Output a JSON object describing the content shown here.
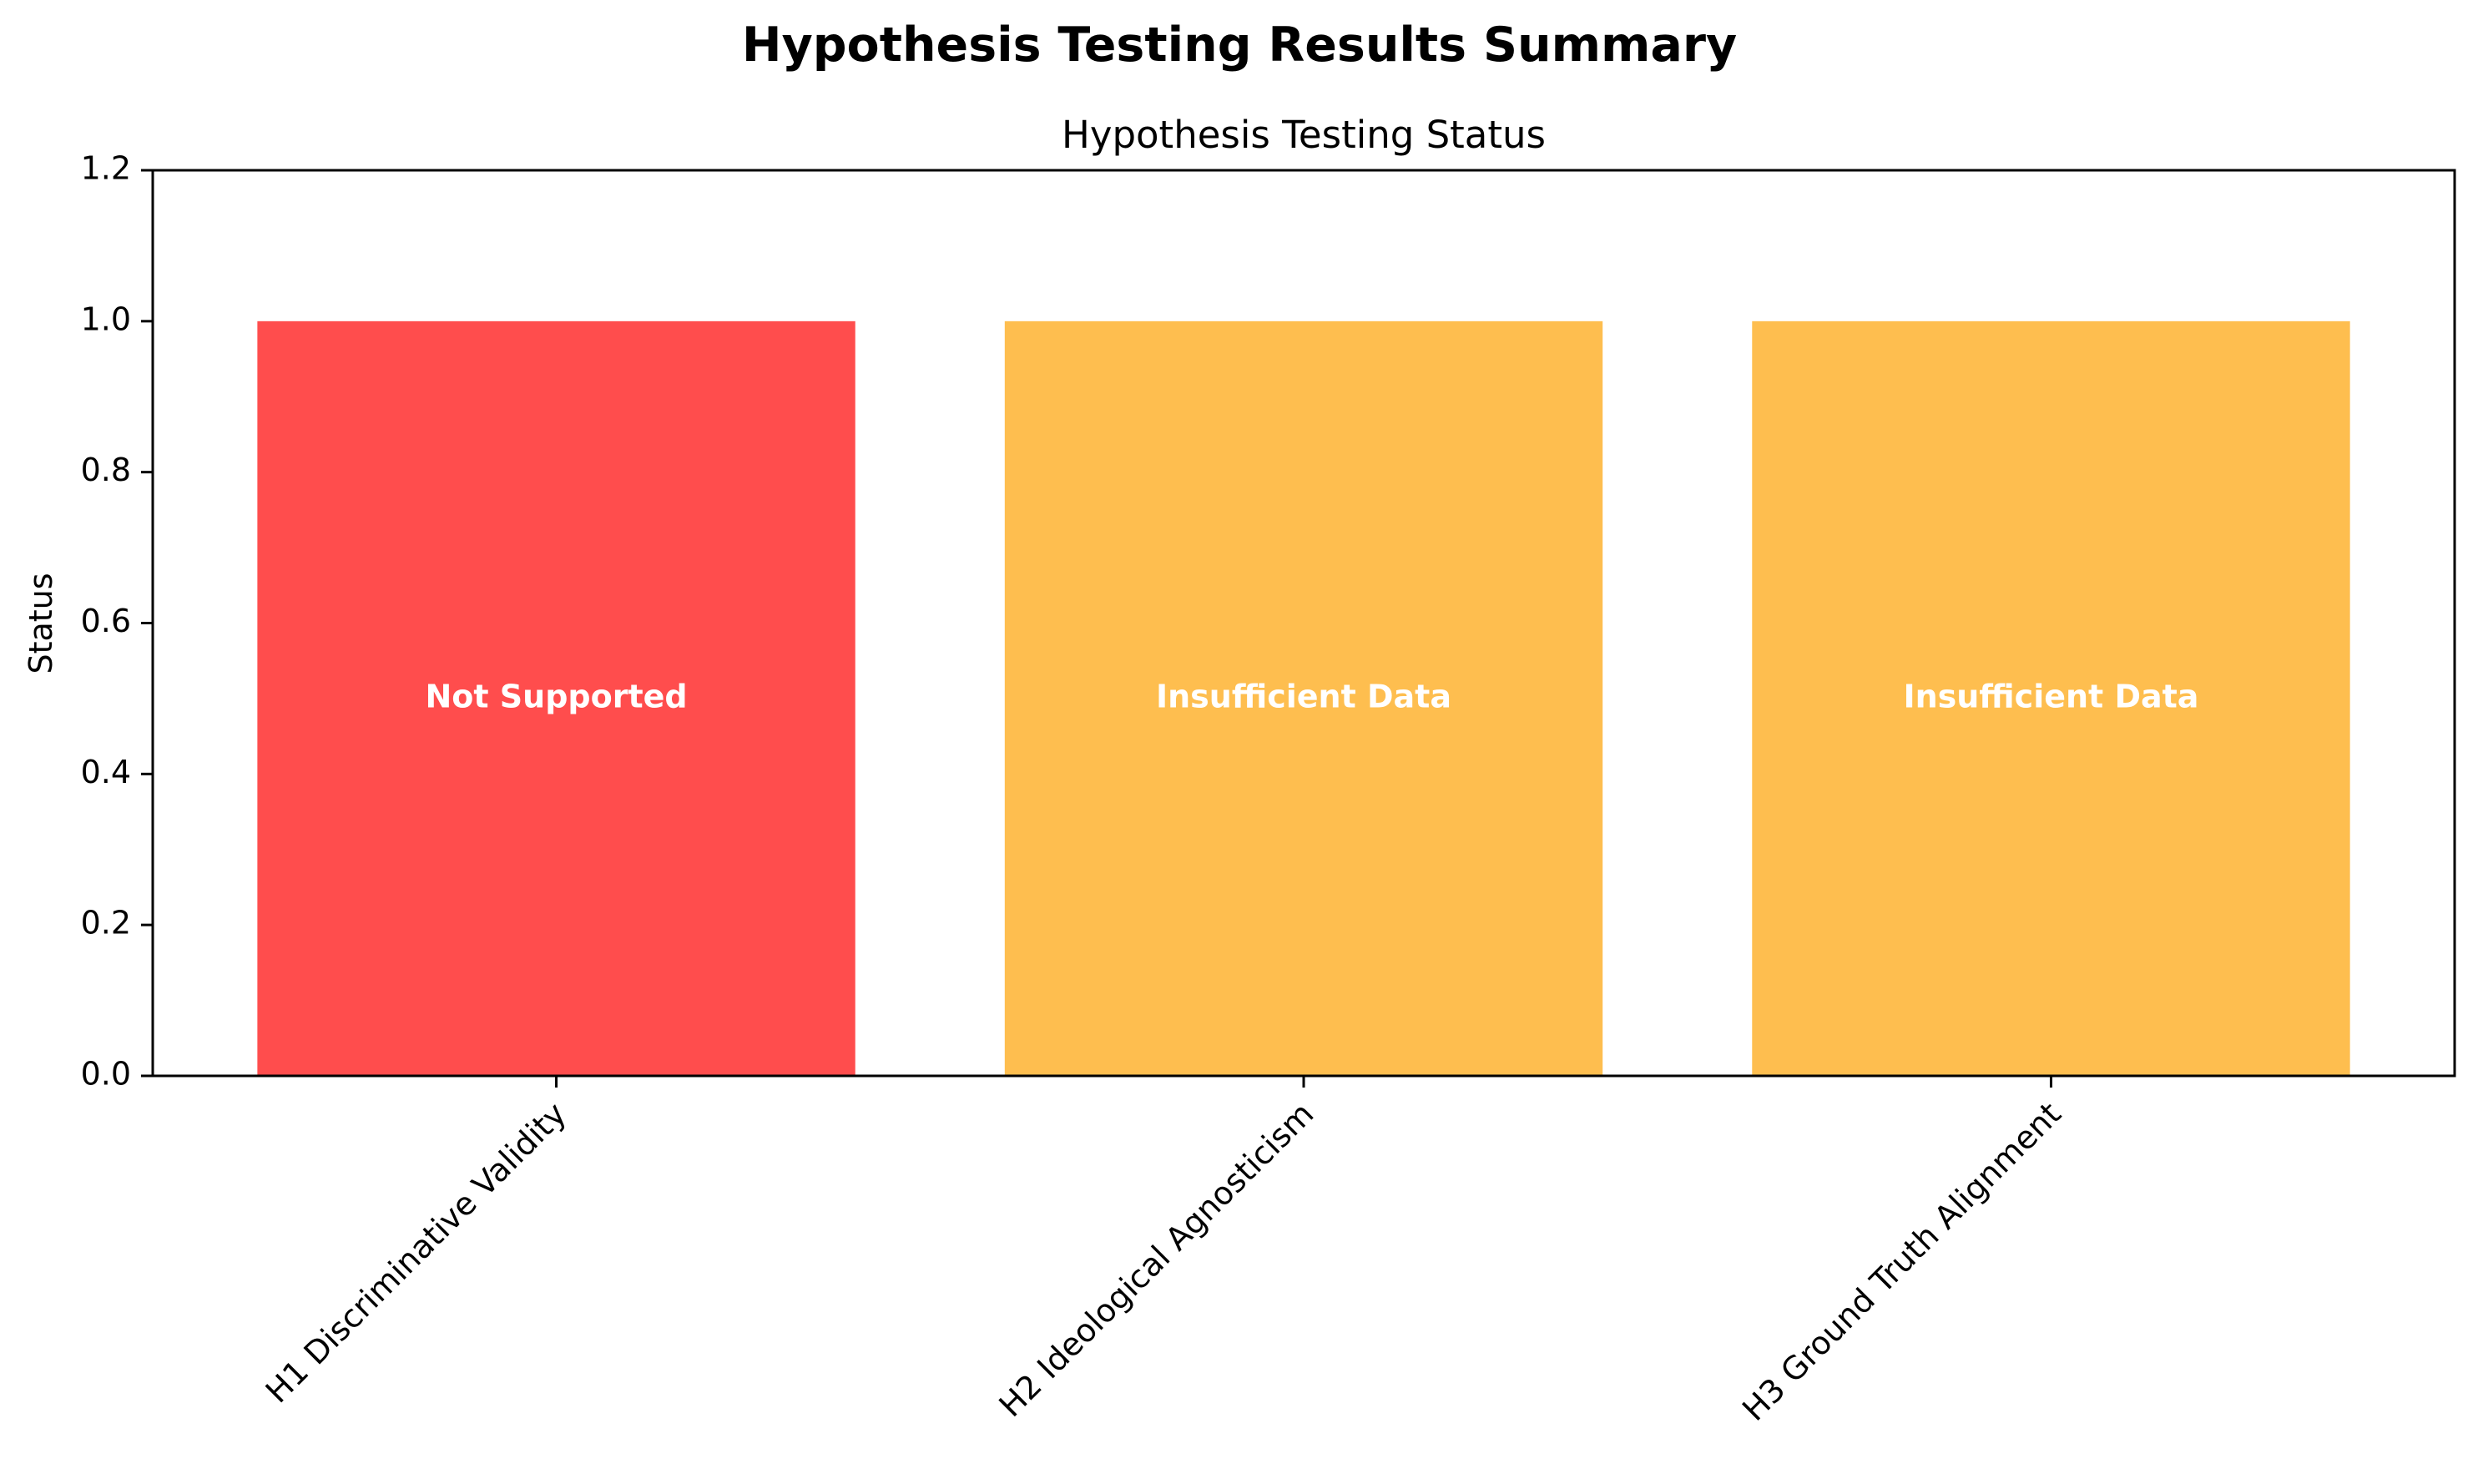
{
  "chart_data": {
    "type": "bar",
    "suptitle": "Hypothesis Testing Results Summary",
    "title": "Hypothesis Testing Status",
    "xlabel": "",
    "ylabel": "Status",
    "categories": [
      "H1 Discriminative Validity",
      "H2 Ideological Agnosticism",
      "H3 Ground Truth Alignment"
    ],
    "values": [
      1.0,
      1.0,
      1.0
    ],
    "bar_labels": [
      "Not Supported",
      "Insufficient Data",
      "Insufficient Data"
    ],
    "colors": [
      "#ff4d4d",
      "#febe4f",
      "#febe4f"
    ],
    "ylim": [
      0,
      1.2
    ],
    "yticks": [
      "0.0",
      "0.2",
      "0.4",
      "0.6",
      "0.8",
      "1.0",
      "1.2"
    ],
    "ytick_values": [
      0,
      0.2,
      0.4,
      0.6,
      0.8,
      1.0,
      1.2
    ],
    "grid": false,
    "legend": "none"
  }
}
